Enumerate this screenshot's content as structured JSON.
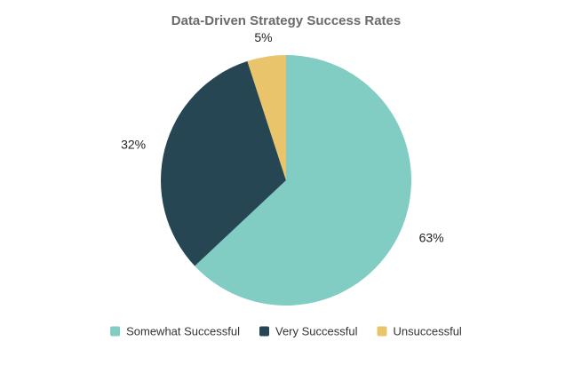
{
  "chart_data": {
    "type": "pie",
    "title": "Data-Driven Strategy Success Rates",
    "slices": [
      {
        "name": "Somewhat Successful",
        "value": 63,
        "label": "63%",
        "color": "#81ccc3"
      },
      {
        "name": "Very Successful",
        "value": 32,
        "label": "32%",
        "color": "#264653"
      },
      {
        "name": "Unsuccessful",
        "value": 5,
        "label": "5%",
        "color": "#e9c46a"
      }
    ],
    "legend_position": "bottom",
    "start_angle_deg": 0,
    "direction": "clockwise"
  }
}
